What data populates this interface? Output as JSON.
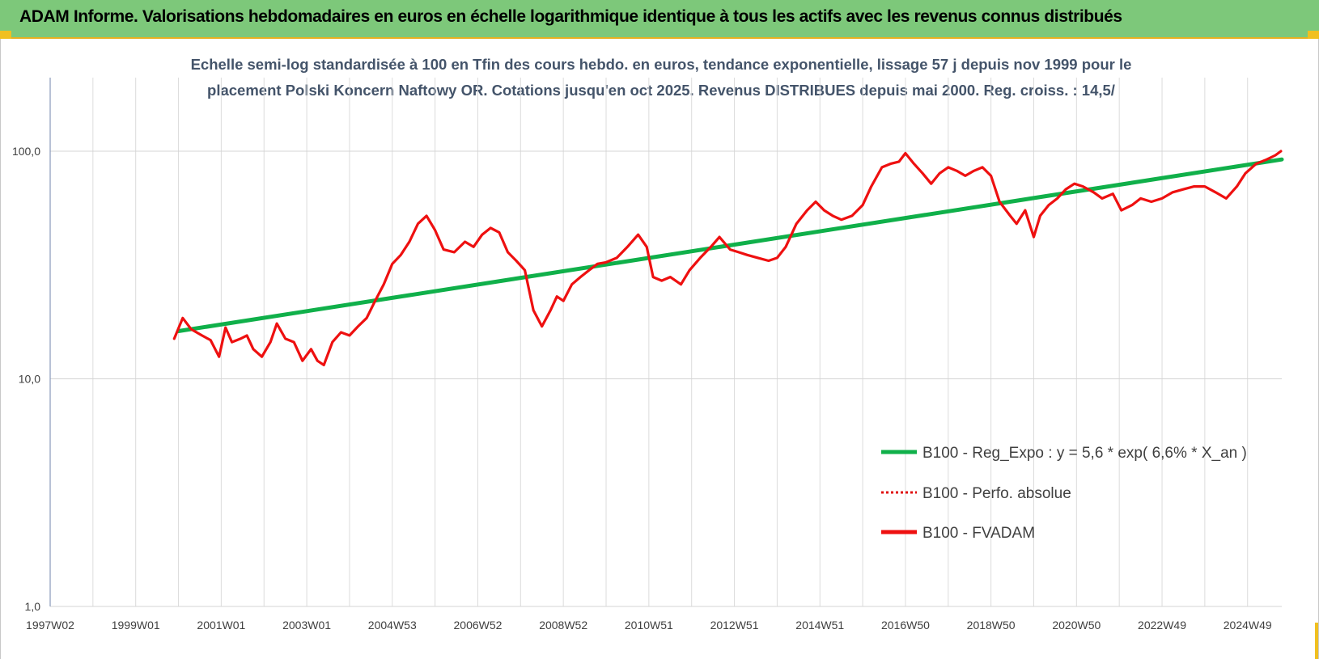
{
  "header": {
    "title": "ADAM Informe. Valorisations hebdomadaires en euros en échelle logarithmique identique à tous les actifs avec les revenus connus distribués"
  },
  "chart_data": {
    "type": "line",
    "title_lines": [
      "Echelle semi-log standardisée à 100 en Tfin des cours hebdo. en euros, tendance exponentielle, lissage 57 j depuis nov 1999 pour le",
      "placement Polski Koncern Naftowy OR. Cotations jusqu'en oct 2025. Revenus DISTRIBUES depuis mai 2000. Reg. croiss. : 14,5/"
    ],
    "y_scale": "log",
    "ylim": [
      1,
      200
    ],
    "y_ticks": [
      {
        "value": 100,
        "label": "100,0"
      },
      {
        "value": 10,
        "label": "10,0"
      },
      {
        "value": 1,
        "label": "1,0"
      }
    ],
    "xlim": [
      1997.0,
      2025.8
    ],
    "x_ticks": [
      {
        "value": 1997.0,
        "label": "1997W02"
      },
      {
        "value": 1999.0,
        "label": "1999W01"
      },
      {
        "value": 2001.0,
        "label": "2001W01"
      },
      {
        "value": 2003.0,
        "label": "2003W01"
      },
      {
        "value": 2005.0,
        "label": "2004W53"
      },
      {
        "value": 2007.0,
        "label": "2006W52"
      },
      {
        "value": 2009.0,
        "label": "2008W52"
      },
      {
        "value": 2011.0,
        "label": "2010W51"
      },
      {
        "value": 2013.0,
        "label": "2012W51"
      },
      {
        "value": 2015.0,
        "label": "2014W51"
      },
      {
        "value": 2017.0,
        "label": "2016W50"
      },
      {
        "value": 2019.0,
        "label": "2018W50"
      },
      {
        "value": 2021.0,
        "label": "2020W50"
      },
      {
        "value": 2023.0,
        "label": "2022W49"
      },
      {
        "value": 2025.0,
        "label": "2024W49"
      }
    ],
    "grid": "vertical at every year, horizontal at decades",
    "legend_position": "right-center",
    "series": [
      {
        "name": "B100 - Reg_Expo : y = 5,6 * exp( 6,6% *  X_an )",
        "color": "#10b04a",
        "style": "solid",
        "x": [
          2000.0,
          2025.8
        ],
        "y": [
          16.2,
          92
        ]
      },
      {
        "name": "B100 - Perfo. absolue",
        "color": "#e01010",
        "style": "dotted",
        "x": [],
        "y": []
      },
      {
        "name": "B100 - FVADAM",
        "color": "#ee1010",
        "style": "solid",
        "x": [
          1999.9,
          2000.1,
          2000.3,
          2000.55,
          2000.75,
          2000.95,
          2001.1,
          2001.25,
          2001.45,
          2001.6,
          2001.75,
          2001.95,
          2002.15,
          2002.3,
          2002.5,
          2002.7,
          2002.9,
          2003.1,
          2003.25,
          2003.4,
          2003.6,
          2003.8,
          2004.0,
          2004.2,
          2004.4,
          2004.6,
          2004.8,
          2005.0,
          2005.2,
          2005.4,
          2005.6,
          2005.8,
          2006.0,
          2006.2,
          2006.45,
          2006.7,
          2006.9,
          2007.1,
          2007.3,
          2007.5,
          2007.7,
          2007.9,
          2008.1,
          2008.3,
          2008.5,
          2008.7,
          2008.85,
          2009.0,
          2009.2,
          2009.4,
          2009.6,
          2009.8,
          2010.0,
          2010.25,
          2010.5,
          2010.75,
          2010.95,
          2011.1,
          2011.3,
          2011.5,
          2011.75,
          2011.95,
          2012.2,
          2012.45,
          2012.65,
          2012.9,
          2013.1,
          2013.3,
          2013.55,
          2013.8,
          2014.0,
          2014.2,
          2014.45,
          2014.7,
          2014.9,
          2015.1,
          2015.3,
          2015.5,
          2015.75,
          2016.0,
          2016.2,
          2016.45,
          2016.65,
          2016.85,
          2017.0,
          2017.2,
          2017.4,
          2017.6,
          2017.8,
          2018.0,
          2018.2,
          2018.4,
          2018.6,
          2018.8,
          2019.0,
          2019.2,
          2019.45,
          2019.6,
          2019.8,
          2020.0,
          2020.15,
          2020.35,
          2020.55,
          2020.75,
          2020.95,
          2021.15,
          2021.4,
          2021.6,
          2021.85,
          2022.05,
          2022.3,
          2022.5,
          2022.75,
          2023.0,
          2023.25,
          2023.5,
          2023.75,
          2024.0,
          2024.25,
          2024.5,
          2024.75,
          2024.95,
          2025.2,
          2025.45,
          2025.65,
          2025.78
        ],
        "y": [
          15.0,
          18.5,
          16.5,
          15.5,
          14.8,
          12.5,
          16.8,
          14.5,
          15.0,
          15.5,
          13.5,
          12.5,
          14.5,
          17.5,
          15.0,
          14.5,
          12.0,
          13.5,
          12.0,
          11.5,
          14.5,
          16.0,
          15.5,
          17.0,
          18.5,
          22.0,
          26.0,
          32.0,
          35.0,
          40.0,
          48.0,
          52.0,
          45.0,
          37.0,
          36.0,
          40.0,
          38.0,
          43.0,
          46.0,
          44.0,
          36.0,
          33.0,
          30.0,
          20.0,
          17.0,
          20.0,
          23.0,
          22.0,
          26.0,
          28.0,
          30.0,
          32.0,
          32.5,
          34.0,
          38.0,
          43.0,
          38.0,
          28.0,
          27.0,
          28.0,
          26.0,
          30.0,
          34.0,
          38.0,
          42.0,
          37.0,
          36.0,
          35.0,
          34.0,
          33.0,
          34.0,
          38.0,
          48.0,
          55.0,
          60.0,
          55.0,
          52.0,
          50.0,
          52.0,
          58.0,
          70.0,
          85.0,
          88.0,
          90.0,
          98.0,
          88.0,
          80.0,
          72.0,
          80.0,
          85.0,
          82.0,
          78.0,
          82.0,
          85.0,
          78.0,
          60.0,
          52.0,
          48.0,
          55.0,
          42.0,
          52.0,
          58.0,
          62.0,
          68.0,
          72.0,
          70.0,
          66.0,
          62.0,
          65.0,
          55.0,
          58.0,
          62.0,
          60.0,
          62.0,
          66.0,
          68.0,
          70.0,
          70.0,
          66.0,
          62.0,
          70.0,
          80.0,
          88.0,
          92.0,
          96.0,
          100.0
        ]
      }
    ]
  }
}
